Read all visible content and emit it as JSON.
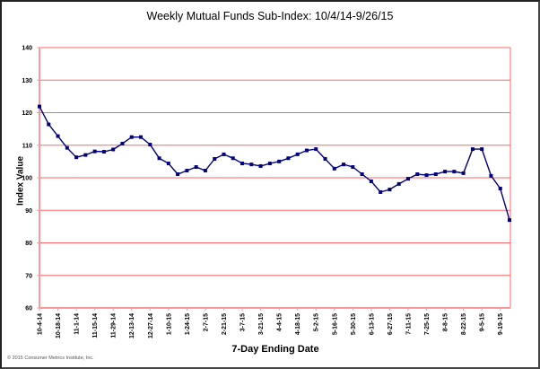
{
  "chart_data": {
    "type": "line",
    "title": "Weekly Mutual Funds Sub-Index: 10/4/14-9/26/15",
    "xlabel": "7-Day Ending Date",
    "ylabel": "Index Value",
    "ylim": [
      60,
      140
    ],
    "yticks": [
      60,
      70,
      80,
      90,
      100,
      110,
      120,
      130,
      140
    ],
    "grid": true,
    "legend": null,
    "tick_labels": [
      "10-4-14",
      "10-18-14",
      "11-1-14",
      "11-15-14",
      "11-29-14",
      "12-13-14",
      "12-27-14",
      "1-10-15",
      "1-24-15",
      "2-7-15",
      "2-21-15",
      "3-7-15",
      "3-21-15",
      "4-4-15",
      "4-18-15",
      "5-2-15",
      "5-16-15",
      "5-30-15",
      "6-13-15",
      "6-27-15",
      "7-11-15",
      "7-25-15",
      "8-8-15",
      "8-22-15",
      "9-5-15",
      "9-19-15"
    ],
    "x": [
      "10-4-14",
      "10-11-14",
      "10-18-14",
      "10-25-14",
      "11-1-14",
      "11-8-14",
      "11-15-14",
      "11-22-14",
      "11-29-14",
      "12-6-14",
      "12-13-14",
      "12-20-14",
      "12-27-14",
      "1-3-15",
      "1-10-15",
      "1-17-15",
      "1-24-15",
      "1-31-15",
      "2-7-15",
      "2-14-15",
      "2-21-15",
      "2-28-15",
      "3-7-15",
      "3-14-15",
      "3-21-15",
      "3-28-15",
      "4-4-15",
      "4-11-15",
      "4-18-15",
      "4-25-15",
      "5-2-15",
      "5-9-15",
      "5-16-15",
      "5-23-15",
      "5-30-15",
      "6-6-15",
      "6-13-15",
      "6-20-15",
      "6-27-15",
      "7-4-15",
      "7-11-15",
      "7-18-15",
      "7-25-15",
      "8-1-15",
      "8-8-15",
      "8-15-15",
      "8-22-15",
      "8-29-15",
      "9-5-15",
      "9-12-15",
      "9-19-15",
      "9-26-15"
    ],
    "series": [
      {
        "name": "Mutual Funds Sub-Index",
        "color": "#000080",
        "values": [
          121.9,
          116.4,
          112.8,
          109.2,
          106.3,
          107.0,
          108.1,
          108.0,
          108.7,
          110.5,
          112.5,
          112.5,
          110.2,
          106.0,
          104.4,
          101.1,
          102.2,
          103.3,
          102.2,
          105.8,
          107.2,
          106.0,
          104.4,
          104.1,
          103.6,
          104.4,
          105.0,
          106.0,
          107.2,
          108.4,
          108.8,
          105.8,
          102.8,
          104.1,
          103.3,
          101.1,
          98.9,
          95.6,
          96.4,
          98.1,
          99.7,
          101.1,
          100.8,
          101.1,
          101.9,
          101.9,
          101.4,
          108.8,
          108.8,
          100.6,
          96.7,
          87.0
        ]
      }
    ]
  },
  "colors": {
    "gridline": "#ff6666",
    "axis": "#ff9999",
    "line": "#000080",
    "frame": "#222222"
  },
  "footer": {
    "copyright": "© 2015 Consumer Metrics Institute, Inc."
  }
}
